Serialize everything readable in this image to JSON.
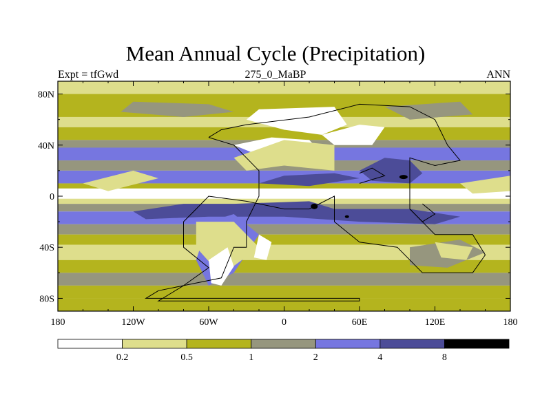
{
  "chart_data": {
    "type": "heatmap",
    "title": "Mean Annual Cycle (Precipitation)",
    "subtitle_left": "Expt = tfGwd",
    "subtitle_center": "275_0_MaBP",
    "subtitle_right": "ANN",
    "x_tick_labels": [
      "180",
      "120W",
      "60W",
      "0",
      "60E",
      "120E",
      "180"
    ],
    "x_tick_values": [
      -180,
      -120,
      -60,
      0,
      60,
      120,
      180
    ],
    "y_tick_labels": [
      "80N",
      "40N",
      "0",
      "40S",
      "80S"
    ],
    "y_tick_values": [
      80,
      40,
      0,
      -40,
      -80
    ],
    "xlim": [
      -180,
      180
    ],
    "ylim": [
      -90,
      90
    ],
    "colorbar": {
      "levels": [
        "0.2",
        "0.5",
        "1",
        "2",
        "4",
        "8"
      ],
      "colors": [
        "#ffffff",
        "#dede8c",
        "#b4b41e",
        "#96967e",
        "#7676e0",
        "#4c4c98",
        "#000000"
      ]
    },
    "colors": {
      "white": "#ffffff",
      "light": "#dede8c",
      "olive": "#b4b41e",
      "gray": "#96967e",
      "blue": "#7676e0",
      "dark": "#4c4c98",
      "black": "#000000"
    }
  }
}
